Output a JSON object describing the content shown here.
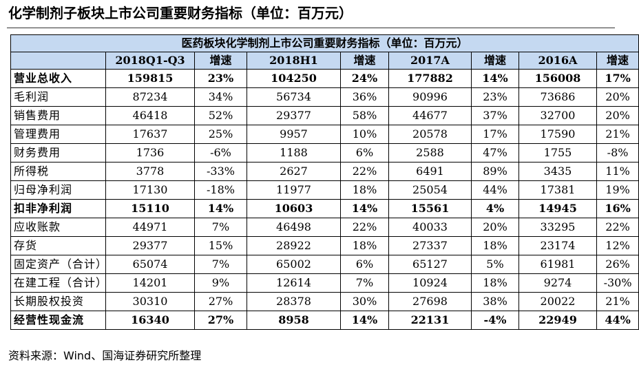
{
  "title": "化学制剂子板块上市公司重要财务指标（单位：百万元）",
  "table": {
    "caption": "医药板块化学制剂上市公司重要财务指标（单位：百万元）",
    "headers": [
      "",
      "2018Q1-Q3",
      "增速",
      "2018H1",
      "增速",
      "2017A",
      "增速",
      "2016A",
      "增速"
    ],
    "rows": [
      {
        "bold": true,
        "cells": [
          "营业总收入",
          "159815",
          "23%",
          "104250",
          "24%",
          "177882",
          "14%",
          "156008",
          "17%"
        ]
      },
      {
        "bold": false,
        "cells": [
          "毛利润",
          "87234",
          "34%",
          "56734",
          "36%",
          "90996",
          "23%",
          "73686",
          "20%"
        ]
      },
      {
        "bold": false,
        "cells": [
          "销售费用",
          "46418",
          "52%",
          "29377",
          "58%",
          "44677",
          "37%",
          "32700",
          "20%"
        ]
      },
      {
        "bold": false,
        "cells": [
          "管理费用",
          "17637",
          "25%",
          "9957",
          "10%",
          "20578",
          "17%",
          "17590",
          "21%"
        ]
      },
      {
        "bold": false,
        "cells": [
          "财务费用",
          "1736",
          "-6%",
          "1188",
          "6%",
          "2588",
          "47%",
          "1755",
          "-8%"
        ]
      },
      {
        "bold": false,
        "cells": [
          "所得税",
          "3778",
          "-33%",
          "2627",
          "22%",
          "6491",
          "89%",
          "3435",
          "11%"
        ]
      },
      {
        "bold": false,
        "cells": [
          "归母净利润",
          "17130",
          "-18%",
          "11977",
          "18%",
          "25054",
          "44%",
          "17381",
          "19%"
        ]
      },
      {
        "bold": true,
        "cells": [
          "扣非净利润",
          "15110",
          "14%",
          "10603",
          "14%",
          "15561",
          "4%",
          "14945",
          "16%"
        ]
      },
      {
        "bold": false,
        "cells": [
          "应收账款",
          "44971",
          "7%",
          "46498",
          "22%",
          "40033",
          "20%",
          "33295",
          "22%"
        ]
      },
      {
        "bold": false,
        "cells": [
          "存货",
          "29377",
          "15%",
          "28922",
          "18%",
          "27337",
          "18%",
          "23174",
          "12%"
        ]
      },
      {
        "bold": false,
        "cells": [
          "固定资产（合计）",
          "65074",
          "7%",
          "65002",
          "6%",
          "65127",
          "5%",
          "61981",
          "26%"
        ]
      },
      {
        "bold": false,
        "cells": [
          "在建工程（合计）",
          "14201",
          "9%",
          "12614",
          "7%",
          "10924",
          "18%",
          "9274",
          "-30%"
        ]
      },
      {
        "bold": false,
        "cells": [
          "长期股权投资",
          "30310",
          "27%",
          "28378",
          "30%",
          "27698",
          "38%",
          "20022",
          "21%"
        ]
      },
      {
        "bold": true,
        "cells": [
          "经营性现金流",
          "16340",
          "27%",
          "8958",
          "14%",
          "22131",
          "-4%",
          "22949",
          "44%"
        ]
      }
    ]
  },
  "source": "资料来源：Wind、国海证券研究所整理",
  "colors": {
    "header_fill": "#c5d9f1",
    "border": "#000000"
  }
}
